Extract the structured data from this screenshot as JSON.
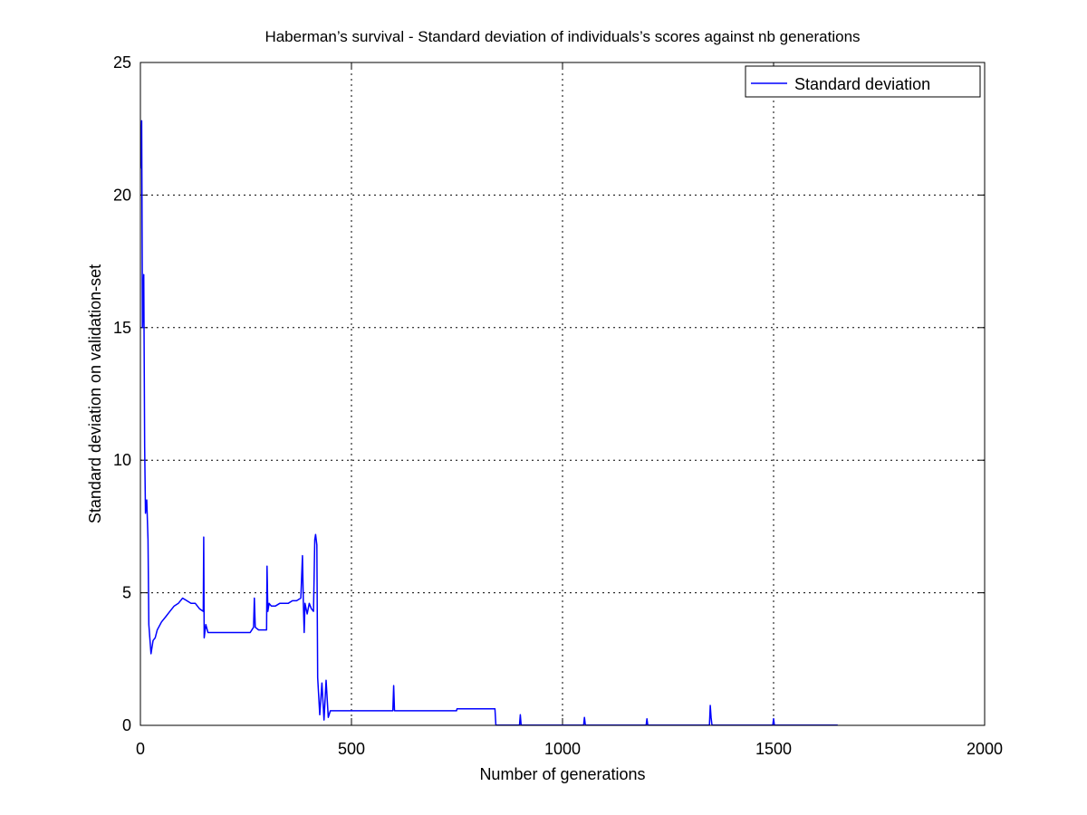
{
  "chart_data": {
    "type": "line",
    "title": "Haberman’s survival - Standard deviation of individuals’s scores against nb generations",
    "xlabel": "Number of generations",
    "ylabel": "Standard deviation on validation-set",
    "xlim": [
      0,
      2000
    ],
    "ylim": [
      0,
      25
    ],
    "xticks": [
      0,
      500,
      1000,
      1500,
      2000
    ],
    "yticks": [
      0,
      5,
      10,
      15,
      20,
      25
    ],
    "xtick_labels": [
      "0",
      "500",
      "1000",
      "1500",
      "2000"
    ],
    "ytick_labels": [
      "0",
      "5",
      "10",
      "15",
      "20",
      "25"
    ],
    "grid": true,
    "legend": {
      "position": "top-right"
    },
    "series": [
      {
        "name": "Standard deviation",
        "color": "#0000ff",
        "x": [
          0,
          3,
          5,
          8,
          10,
          12,
          15,
          18,
          20,
          25,
          30,
          35,
          40,
          50,
          60,
          70,
          80,
          90,
          100,
          110,
          120,
          130,
          140,
          149,
          150,
          151,
          155,
          160,
          180,
          200,
          220,
          240,
          260,
          268,
          270,
          272,
          280,
          290,
          299,
          300,
          302,
          305,
          310,
          320,
          330,
          340,
          350,
          360,
          370,
          380,
          384,
          386,
          388,
          390,
          395,
          400,
          405,
          410,
          413,
          415,
          418,
          420,
          425,
          430,
          435,
          440,
          445,
          450,
          460,
          500,
          550,
          598,
          600,
          602,
          650,
          700,
          749,
          750,
          800,
          840,
          842,
          845,
          850,
          898,
          900,
          902,
          950,
          1000,
          1050,
          1052,
          1054,
          1100,
          1150,
          1198,
          1200,
          1202,
          1250,
          1300,
          1348,
          1350,
          1352,
          1354,
          1400,
          1450,
          1498,
          1500,
          1502,
          1550,
          1600,
          1652
        ],
        "values": [
          21,
          22.8,
          15,
          17,
          10.5,
          8,
          8.5,
          7,
          3.8,
          2.7,
          3.2,
          3.3,
          3.6,
          3.9,
          4.1,
          4.3,
          4.5,
          4.6,
          4.8,
          4.7,
          4.6,
          4.6,
          4.4,
          4.3,
          7.1,
          3.3,
          3.8,
          3.5,
          3.5,
          3.5,
          3.5,
          3.5,
          3.5,
          3.7,
          4.8,
          3.7,
          3.6,
          3.6,
          3.6,
          6.0,
          4.3,
          4.6,
          4.5,
          4.5,
          4.6,
          4.6,
          4.6,
          4.7,
          4.7,
          4.8,
          6.4,
          4.6,
          3.5,
          4.6,
          4.2,
          4.6,
          4.4,
          4.3,
          7.0,
          7.2,
          6.8,
          1.8,
          0.4,
          1.6,
          0.2,
          1.7,
          0.3,
          0.55,
          0.55,
          0.55,
          0.55,
          0.55,
          1.5,
          0.55,
          0.55,
          0.55,
          0.55,
          0.62,
          0.62,
          0.62,
          0.02,
          0.01,
          0.01,
          0.01,
          0.4,
          0.01,
          0.01,
          0.01,
          0.01,
          0.3,
          0.01,
          0.01,
          0.01,
          0.01,
          0.25,
          0.01,
          0.01,
          0.01,
          0.01,
          0.75,
          0.3,
          0.01,
          0.01,
          0.01,
          0.01,
          0.25,
          0.01,
          0.01,
          0.01,
          0.01
        ]
      }
    ]
  }
}
